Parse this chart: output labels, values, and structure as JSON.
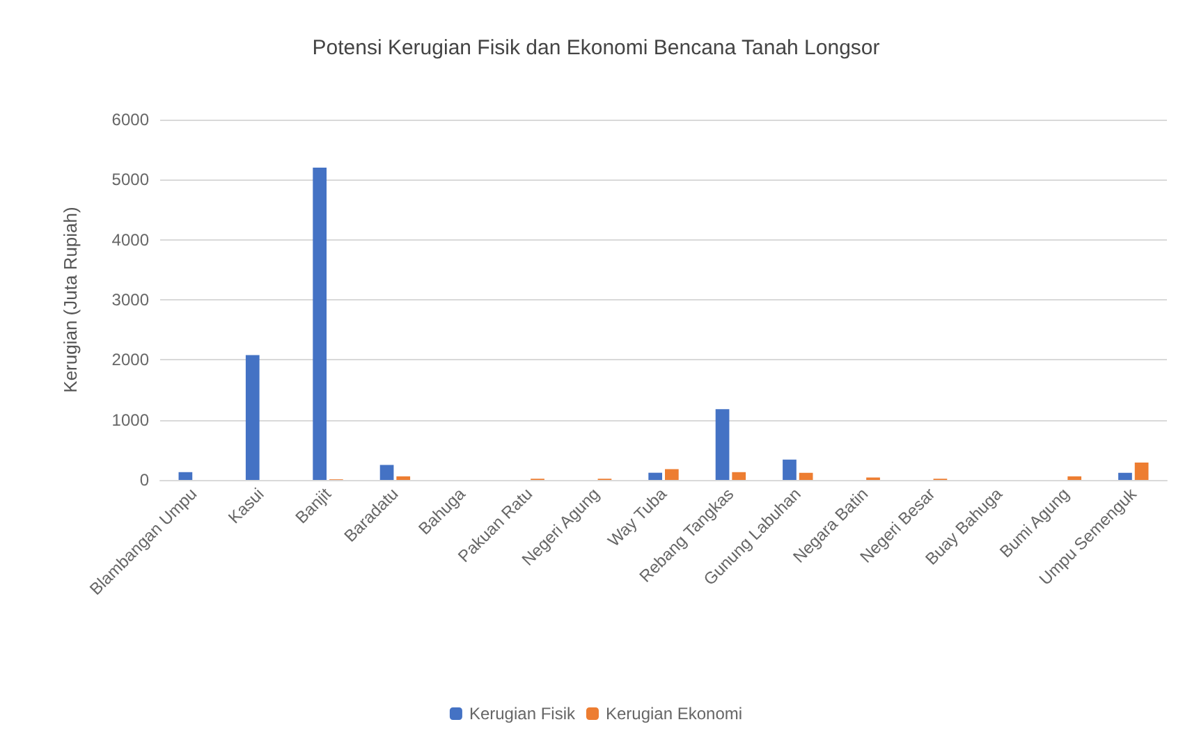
{
  "chart_data": {
    "type": "bar",
    "title": "Potensi Kerugian Fisik dan Ekonomi Bencana Tanah Longsor",
    "ylabel": "Kerugian (Juta Rupiah)",
    "categories": [
      "Blambangan Umpu",
      "Kasui",
      "Banjit",
      "Baradatu",
      "Bahuga",
      "Pakuan Ratu",
      "Negeri Agung",
      "Way Tuba",
      "Rebang Tangkas",
      "Gunung Labuhan",
      "Negara Batin",
      "Negeri Besar",
      "Buay Bahuga",
      "Bumi Agung",
      "Umpu Semenguk"
    ],
    "series": [
      {
        "name": "Kerugian Fisik",
        "color": "#4472c4",
        "values": [
          130,
          2080,
          5200,
          250,
          0,
          0,
          0,
          120,
          1180,
          340,
          0,
          0,
          0,
          0,
          120
        ]
      },
      {
        "name": "Kerugian Ekonomi",
        "color": "#ed7d31",
        "values": [
          0,
          0,
          10,
          60,
          0,
          20,
          20,
          180,
          130,
          120,
          40,
          20,
          0,
          60,
          290
        ]
      }
    ],
    "ylim": [
      0,
      6000
    ],
    "yticks": [
      0,
      1000,
      2000,
      3000,
      4000,
      5000,
      6000
    ],
    "grid": "y",
    "legend": "bottom"
  }
}
